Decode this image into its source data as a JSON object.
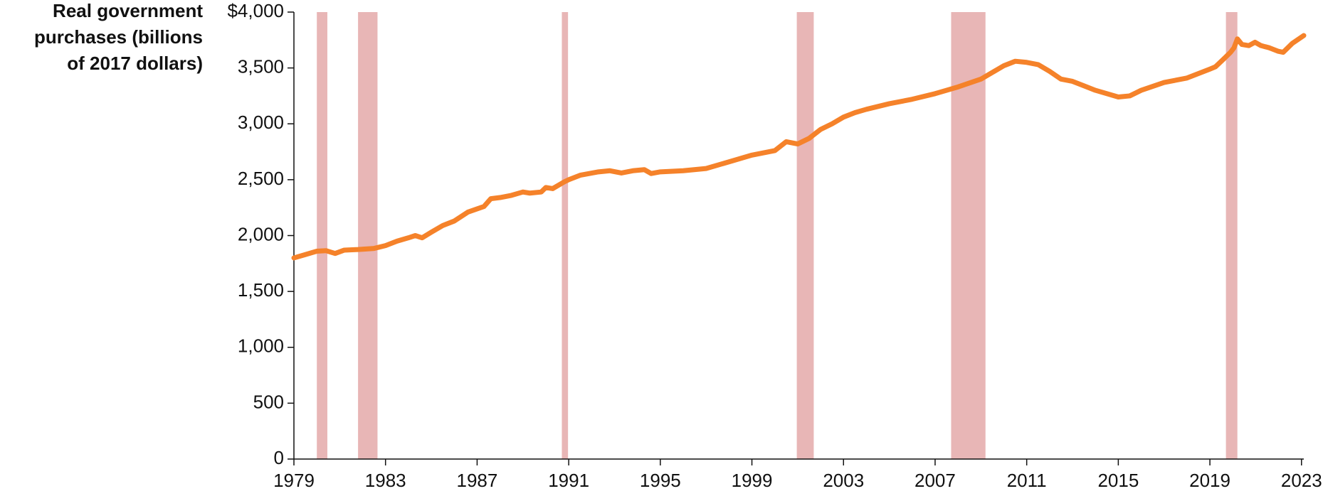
{
  "chart_data": {
    "type": "line",
    "ylabel": [
      "Real government",
      "purchases (billions",
      "of 2017 dollars)"
    ],
    "x": [
      1979.0,
      1979.5,
      1980.0,
      1980.4,
      1980.8,
      1981.2,
      1981.8,
      1982.5,
      1983.0,
      1983.5,
      1984.0,
      1984.3,
      1984.6,
      1985.0,
      1985.5,
      1986.0,
      1986.6,
      1987.3,
      1987.6,
      1988.0,
      1988.5,
      1989.0,
      1989.3,
      1989.8,
      1990.0,
      1990.3,
      1990.8,
      1991.0,
      1991.5,
      1992.3,
      1992.8,
      1993.3,
      1993.8,
      1994.3,
      1994.6,
      1995.0,
      1996.0,
      1997.0,
      1998.0,
      1999.0,
      2000.0,
      2000.5,
      2001.0,
      2001.5,
      2002.0,
      2002.5,
      2003.0,
      2003.5,
      2004.0,
      2005.0,
      2006.0,
      2007.0,
      2008.0,
      2009.0,
      2010.0,
      2010.5,
      2011.0,
      2011.5,
      2012.0,
      2012.5,
      2013.0,
      2014.0,
      2015.0,
      2015.5,
      2016.0,
      2017.0,
      2018.0,
      2019.0,
      2019.24,
      2019.6,
      2019.9,
      2020.05,
      2020.2,
      2020.4,
      2020.7,
      2020.97,
      2021.23,
      2021.6,
      2021.97,
      2022.2,
      2022.6,
      2023.1
    ],
    "values": [
      1800,
      1830,
      1860,
      1865,
      1840,
      1870,
      1875,
      1885,
      1910,
      1950,
      1980,
      2000,
      1980,
      2030,
      2090,
      2130,
      2210,
      2260,
      2330,
      2340,
      2360,
      2390,
      2380,
      2390,
      2430,
      2420,
      2480,
      2500,
      2540,
      2570,
      2580,
      2560,
      2580,
      2590,
      2555,
      2570,
      2580,
      2600,
      2660,
      2720,
      2760,
      2840,
      2820,
      2870,
      2950,
      3000,
      3060,
      3100,
      3130,
      3180,
      3220,
      3270,
      3330,
      3400,
      3520,
      3560,
      3550,
      3530,
      3470,
      3400,
      3380,
      3300,
      3240,
      3250,
      3300,
      3370,
      3410,
      3490,
      3510,
      3580,
      3640,
      3680,
      3760,
      3710,
      3700,
      3730,
      3700,
      3680,
      3650,
      3640,
      3720,
      3790
    ],
    "color": "#f5822a",
    "shaded_periods": [
      [
        1980.0,
        1980.46
      ],
      [
        1981.8,
        1982.65
      ],
      [
        1990.7,
        1990.97
      ],
      [
        2000.96,
        2001.7
      ],
      [
        2007.7,
        2009.2
      ],
      [
        2019.7,
        2020.2
      ]
    ],
    "shade_color": "#e8b6b6",
    "xlim": [
      1979,
      2023.1
    ],
    "xticks": [
      1979,
      1983,
      1987,
      1991,
      1995,
      1999,
      2003,
      2007,
      2011,
      2015,
      2019,
      2023
    ],
    "ylim": [
      0,
      4000
    ],
    "yticks": [
      0,
      500,
      {
        "value": 1000,
        "label": "1,000"
      },
      {
        "value": 1500,
        "label": "1,500"
      },
      {
        "value": 2000,
        "label": "2,000"
      },
      {
        "value": 2500,
        "label": "2,500"
      },
      {
        "value": 3000,
        "label": "3,000"
      },
      {
        "value": 3500,
        "label": "3,500"
      },
      {
        "value": 4000,
        "label": "$4,000"
      }
    ],
    "grid": false
  }
}
